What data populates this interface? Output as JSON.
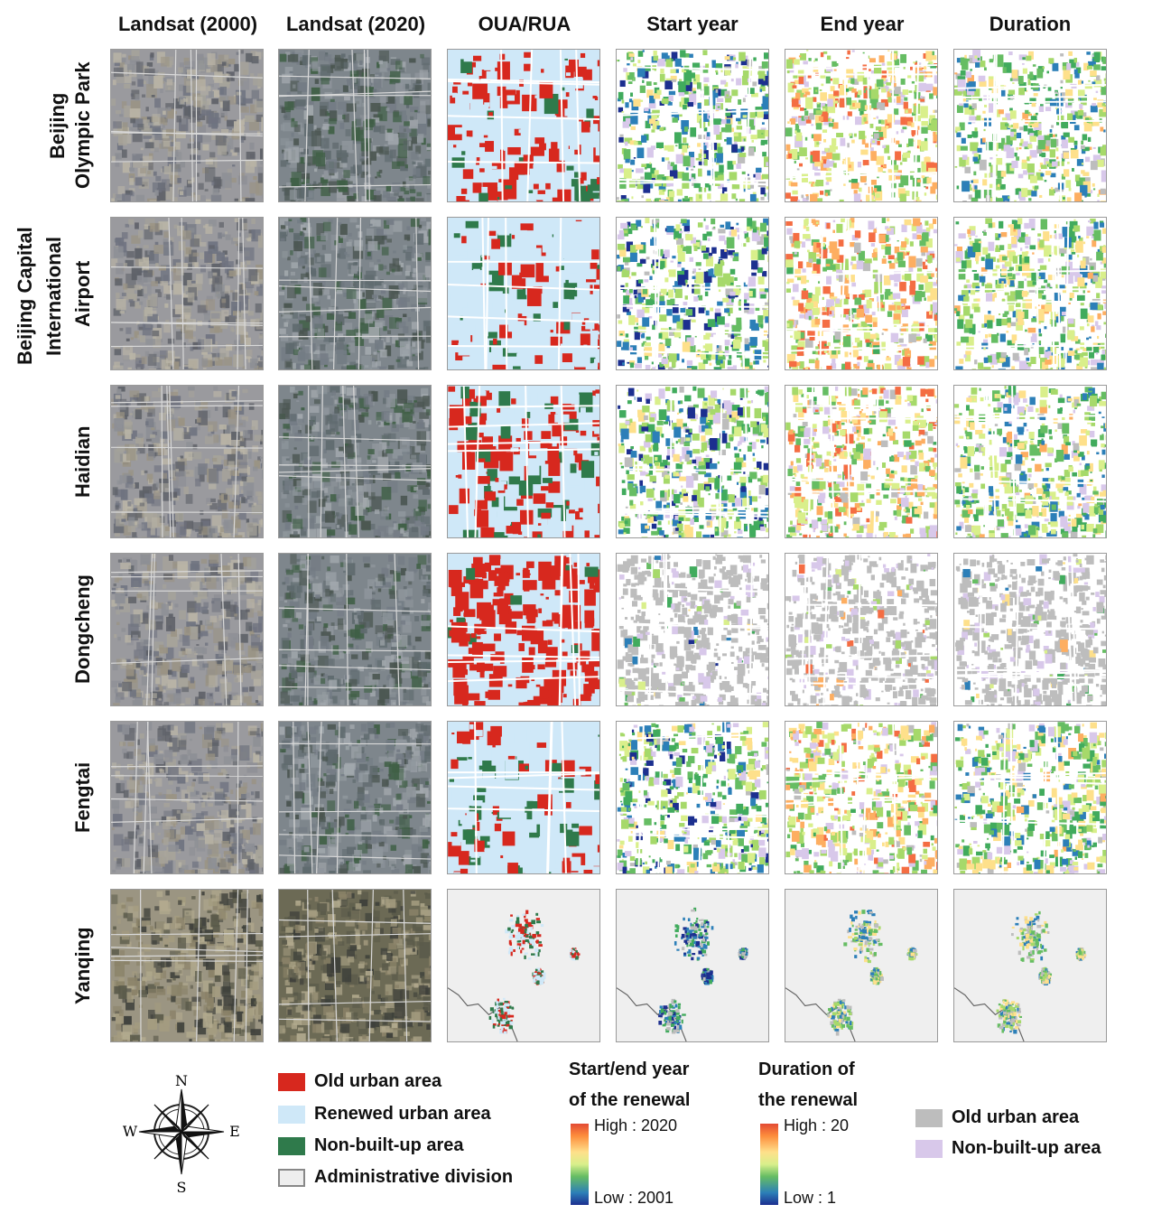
{
  "columns": [
    "Landsat (2000)",
    "Landsat (2020)",
    "OUA/RUA",
    "Start year",
    "End year",
    "Duration"
  ],
  "group_label": [
    "Beijing Capital",
    "International"
  ],
  "rows": [
    {
      "label_lines": [
        "Beijing",
        "Olympic Park"
      ]
    },
    {
      "label_lines": [
        "Airport"
      ]
    },
    {
      "label_lines": [
        "Haidian"
      ]
    },
    {
      "label_lines": [
        "Dongcheng"
      ]
    },
    {
      "label_lines": [
        "Fengtai"
      ]
    },
    {
      "label_lines": [
        "Yanqing"
      ]
    }
  ],
  "legend_classes": [
    {
      "label": "Old urban area",
      "color": "#d7281e"
    },
    {
      "label": "Renewed urban area",
      "color": "#cfe8f8"
    },
    {
      "label": "Non-built-up area",
      "color": "#2f7a4b"
    },
    {
      "label": "Administrative division",
      "color": "#eeeeee"
    }
  ],
  "colorbar_year": {
    "title_lines": [
      "Start/end year",
      "of the renewal"
    ],
    "high": "High : 2020",
    "low": "Low : 2001"
  },
  "colorbar_duration": {
    "title_lines": [
      "Duration of",
      "the renewal"
    ],
    "high": "High : 20",
    "low": "Low : 1"
  },
  "legend_gray": [
    {
      "label": "Old urban area",
      "color": "#bdbdbd"
    },
    {
      "label": "Non-built-up area",
      "color": "#d8c8ea"
    }
  ],
  "compass": {
    "n": "N",
    "s": "S",
    "e": "E",
    "w": "W"
  }
}
